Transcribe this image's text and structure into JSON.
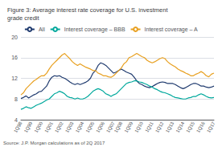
{
  "chart_data": {
    "type": "line",
    "title": "Figure 3: Average interest rate coverage for U.S. investment\ngrade credit",
    "annotations": [
      "Source: J.P. Morgan calculations as of 2Q 2017"
    ],
    "categories": [
      "1Q98",
      null,
      null,
      null,
      "1Q99",
      null,
      null,
      null,
      "1Q00",
      null,
      null,
      null,
      "1Q01",
      null,
      null,
      null,
      "1Q02",
      null,
      null,
      null,
      "1Q03",
      null,
      null,
      null,
      "1Q04",
      null,
      null,
      null,
      "1Q05",
      null,
      null,
      null,
      "1Q06",
      null,
      null,
      null,
      "1Q07",
      null,
      null,
      "1Q08",
      null,
      null,
      null,
      "1Q09",
      null,
      null,
      null,
      "1Q10",
      null,
      null,
      null,
      "1Q11",
      null,
      null,
      null,
      "1Q12",
      null,
      null,
      null,
      "1Q13",
      null,
      null,
      null,
      "1Q14",
      null,
      null,
      null,
      "1Q15",
      null,
      null,
      null,
      "1Q16",
      null,
      null,
      null,
      "1Q17"
    ],
    "series": [
      {
        "name": "All",
        "color": "#1f3a6e",
        "values": [
          8.1,
          8.3,
          8.6,
          8.2,
          8.5,
          8.8,
          9.0,
          9.4,
          9.5,
          10.0,
          10.5,
          11.5,
          12.2,
          12.5,
          12.4,
          12.5,
          12.2,
          12.0,
          11.7,
          11.3,
          11.0,
          10.8,
          11.0,
          10.8,
          11.0,
          11.2,
          11.5,
          12.0,
          13.0,
          13.5,
          14.5,
          15.0,
          14.8,
          14.5,
          14.0,
          13.5,
          13.0,
          13.2,
          13.5,
          13.8,
          13.5,
          13.2,
          13.0,
          12.8,
          12.2,
          11.5,
          11.0,
          10.8,
          10.5,
          10.3,
          10.2,
          10.4,
          10.7,
          11.0,
          11.2,
          11.3,
          11.2,
          11.0,
          11.0,
          11.0,
          10.8,
          10.5,
          10.2,
          10.0,
          10.2,
          10.5,
          10.8,
          11.0,
          11.0,
          10.8,
          10.5,
          10.5,
          10.3,
          10.2,
          10.3,
          10.5
        ]
      },
      {
        "name": "Interest coverage – BBB",
        "color": "#00a89c",
        "values": [
          6.0,
          6.2,
          6.5,
          6.3,
          6.2,
          6.5,
          6.8,
          7.0,
          7.2,
          7.5,
          7.8,
          8.0,
          8.5,
          9.0,
          9.2,
          9.5,
          9.3,
          9.0,
          8.5,
          8.3,
          8.2,
          8.0,
          8.2,
          8.0,
          8.0,
          8.2,
          8.5,
          9.0,
          9.5,
          9.8,
          10.0,
          9.8,
          9.5,
          9.0,
          8.8,
          8.5,
          8.8,
          9.0,
          9.5,
          10.0,
          10.5,
          11.0,
          11.2,
          11.3,
          11.5,
          11.5,
          11.3,
          11.2,
          11.0,
          10.8,
          10.5,
          10.3,
          10.0,
          9.8,
          9.5,
          9.3,
          9.2,
          9.0,
          8.8,
          8.5,
          8.3,
          8.2,
          8.1,
          8.0,
          8.0,
          8.2,
          8.3,
          8.5,
          8.5,
          8.8,
          9.0,
          8.8,
          8.5,
          8.3,
          8.2,
          8.3
        ]
      },
      {
        "name": "Interest coverage – A",
        "color": "#e8a020",
        "values": [
          8.8,
          9.2,
          10.0,
          10.5,
          11.0,
          11.5,
          11.8,
          12.2,
          12.5,
          12.5,
          13.0,
          13.8,
          14.5,
          15.0,
          15.5,
          16.0,
          16.5,
          16.8,
          16.3,
          15.8,
          15.2,
          14.8,
          14.5,
          14.8,
          14.5,
          14.2,
          14.0,
          13.8,
          13.5,
          13.5,
          13.0,
          12.8,
          12.5,
          12.5,
          12.3,
          12.2,
          12.5,
          13.0,
          13.5,
          14.0,
          14.8,
          15.2,
          16.0,
          16.2,
          16.5,
          16.8,
          16.5,
          16.2,
          16.0,
          15.5,
          15.2,
          15.0,
          15.2,
          15.5,
          15.8,
          16.0,
          15.8,
          15.2,
          14.8,
          14.5,
          14.2,
          13.8,
          13.5,
          13.3,
          13.0,
          12.8,
          12.5,
          12.5,
          12.8,
          13.0,
          13.3,
          13.0,
          12.5,
          12.3,
          12.8,
          13.0
        ]
      }
    ],
    "ylim": [
      4.0,
      20.0
    ],
    "yticks": [
      4.0,
      8.0,
      12.0,
      16.0,
      20.0
    ],
    "grid": true,
    "legend": "top"
  }
}
